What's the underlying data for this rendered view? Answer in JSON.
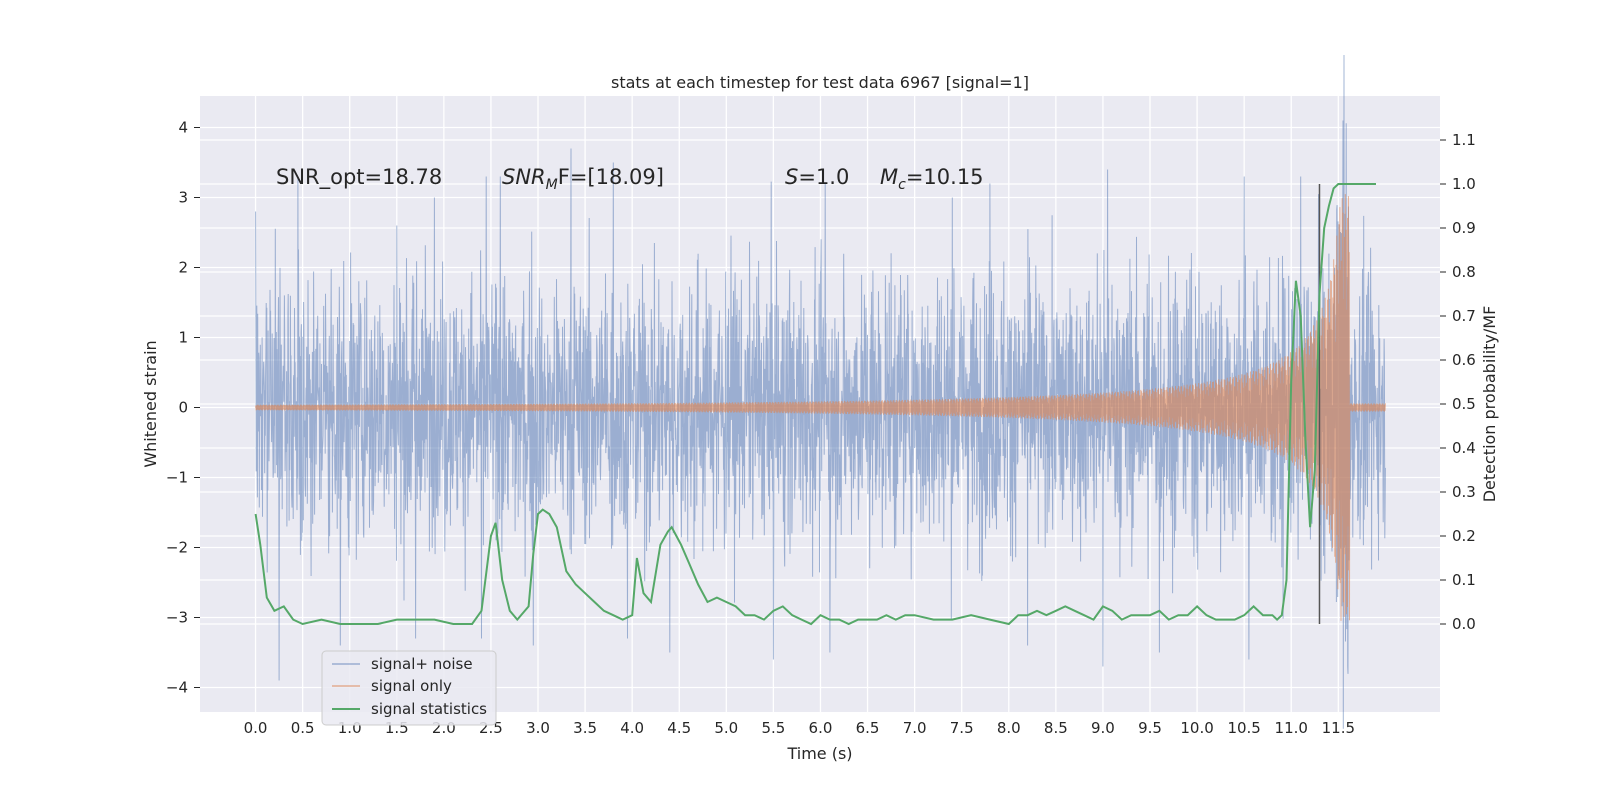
{
  "chart_data": {
    "type": "line",
    "title": "stats at each timestep for test data 6967 [signal=1]",
    "xlabel": "Time (s)",
    "ylabel_left": "Whitened strain",
    "ylabel_right": "Detection probability/MF",
    "xlim": [
      -0.59,
      12.58
    ],
    "ylim_left": [
      -4.35,
      4.45
    ],
    "ylim_right": [
      -0.2,
      1.2
    ],
    "x_ticks": [
      "0.0",
      "0.5",
      "1.0",
      "1.5",
      "2.0",
      "2.5",
      "3.0",
      "3.5",
      "4.0",
      "4.5",
      "5.0",
      "5.5",
      "6.0",
      "6.5",
      "7.0",
      "7.5",
      "8.0",
      "8.5",
      "9.0",
      "9.5",
      "10.0",
      "10.5",
      "11.0",
      "11.5"
    ],
    "y_ticks_left": [
      "4",
      "3",
      "2",
      "1",
      "0",
      "−1",
      "−2",
      "−3",
      "−4"
    ],
    "y_ticks_right": [
      "1.1",
      "1.0",
      "0.9",
      "0.8",
      "0.7",
      "0.6",
      "0.5",
      "0.4",
      "0.3",
      "0.2",
      "0.1",
      "0.0"
    ],
    "grid": true,
    "legend_position": "lower-left",
    "colors": {
      "background": "#eaeaf2",
      "grid": "#ffffff",
      "signal_noise": "#4c72b0",
      "signal_only": "#dd8452",
      "signal_statistics": "#55a868",
      "marker": "#555555"
    },
    "annotations": {
      "snr_opt": "SNR_opt=18.78",
      "snr_mf_base": "SNR",
      "snr_mf_sub": "M",
      "snr_mf_rest": "F=[18.09]",
      "s_label": "S",
      "s_value": "=1.0",
      "mc_base": "M",
      "mc_sub": "c",
      "mc_value": "=10.15"
    },
    "marker_x": 11.3,
    "series": [
      {
        "name": "signal+ noise",
        "kind": "noise-band",
        "x_range": [
          0.0,
          12.0
        ],
        "typical_range": [
          -1.9,
          1.9
        ],
        "peaks_up": [
          [
            0.0,
            2.8
          ],
          [
            0.45,
            3.3
          ],
          [
            1.5,
            2.6
          ],
          [
            1.9,
            3.0
          ],
          [
            2.45,
            3.3
          ],
          [
            2.6,
            3.3
          ],
          [
            3.35,
            3.7
          ],
          [
            3.8,
            3.5
          ],
          [
            5.5,
            3.2
          ],
          [
            6.05,
            3.2
          ],
          [
            7.4,
            3.0
          ],
          [
            7.8,
            3.2
          ],
          [
            9.05,
            3.4
          ],
          [
            10.5,
            3.3
          ],
          [
            11.1,
            3.3
          ],
          [
            11.55,
            4.1
          ],
          [
            11.6,
            4.0
          ]
        ],
        "peaks_down": [
          [
            0.25,
            -3.9
          ],
          [
            0.9,
            -3.4
          ],
          [
            1.7,
            -3.3
          ],
          [
            2.4,
            -3.3
          ],
          [
            2.95,
            -3.4
          ],
          [
            3.95,
            -3.3
          ],
          [
            4.4,
            -3.5
          ],
          [
            5.5,
            -3.6
          ],
          [
            6.1,
            -3.5
          ],
          [
            8.2,
            -3.4
          ],
          [
            9.0,
            -3.7
          ],
          [
            9.6,
            -3.5
          ],
          [
            10.55,
            -3.6
          ],
          [
            11.6,
            -3.7
          ]
        ]
      },
      {
        "name": "signal only",
        "kind": "chirp",
        "t_coalescence": 11.62,
        "amplitude_ref": 3.05
      },
      {
        "name": "signal statistics",
        "x": [
          0.0,
          0.05,
          0.12,
          0.2,
          0.3,
          0.4,
          0.5,
          0.7,
          0.9,
          1.1,
          1.3,
          1.5,
          1.7,
          1.9,
          2.1,
          2.3,
          2.4,
          2.5,
          2.55,
          2.62,
          2.7,
          2.78,
          2.9,
          2.95,
          3.0,
          3.05,
          3.12,
          3.2,
          3.3,
          3.4,
          3.5,
          3.6,
          3.7,
          3.8,
          3.9,
          4.0,
          4.05,
          4.12,
          4.2,
          4.3,
          4.38,
          4.42,
          4.47,
          4.52,
          4.6,
          4.7,
          4.8,
          4.9,
          5.0,
          5.1,
          5.2,
          5.3,
          5.4,
          5.5,
          5.6,
          5.7,
          5.8,
          5.9,
          6.0,
          6.1,
          6.2,
          6.3,
          6.4,
          6.5,
          6.6,
          6.7,
          6.8,
          6.9,
          7.0,
          7.2,
          7.4,
          7.6,
          7.8,
          8.0,
          8.1,
          8.2,
          8.3,
          8.4,
          8.5,
          8.6,
          8.7,
          8.8,
          8.9,
          9.0,
          9.1,
          9.2,
          9.3,
          9.4,
          9.5,
          9.6,
          9.7,
          9.8,
          9.9,
          10.0,
          10.1,
          10.2,
          10.3,
          10.4,
          10.5,
          10.6,
          10.7,
          10.8,
          10.85,
          10.9,
          10.95,
          11.0,
          11.05,
          11.1,
          11.15,
          11.2,
          11.25,
          11.3,
          11.35,
          11.4,
          11.45,
          11.5,
          11.6,
          11.7,
          11.8,
          11.9
        ],
        "values": [
          0.25,
          0.18,
          0.06,
          0.03,
          0.04,
          0.01,
          0.0,
          0.01,
          0.0,
          0.0,
          0.0,
          0.01,
          0.01,
          0.01,
          0.0,
          0.0,
          0.03,
          0.2,
          0.23,
          0.1,
          0.03,
          0.01,
          0.04,
          0.16,
          0.25,
          0.26,
          0.25,
          0.22,
          0.12,
          0.09,
          0.07,
          0.05,
          0.03,
          0.02,
          0.01,
          0.02,
          0.15,
          0.07,
          0.05,
          0.18,
          0.21,
          0.22,
          0.2,
          0.18,
          0.14,
          0.09,
          0.05,
          0.06,
          0.05,
          0.04,
          0.02,
          0.02,
          0.01,
          0.03,
          0.04,
          0.02,
          0.01,
          0.0,
          0.02,
          0.01,
          0.01,
          0.0,
          0.01,
          0.01,
          0.01,
          0.02,
          0.01,
          0.02,
          0.02,
          0.01,
          0.01,
          0.02,
          0.01,
          0.0,
          0.02,
          0.02,
          0.03,
          0.02,
          0.03,
          0.04,
          0.03,
          0.02,
          0.01,
          0.04,
          0.03,
          0.01,
          0.02,
          0.02,
          0.02,
          0.03,
          0.01,
          0.02,
          0.02,
          0.04,
          0.02,
          0.01,
          0.01,
          0.01,
          0.02,
          0.04,
          0.02,
          0.02,
          0.01,
          0.02,
          0.1,
          0.55,
          0.78,
          0.7,
          0.42,
          0.22,
          0.35,
          0.75,
          0.9,
          0.95,
          0.99,
          1.0,
          1.0,
          1.0,
          1.0,
          1.0
        ]
      }
    ]
  }
}
